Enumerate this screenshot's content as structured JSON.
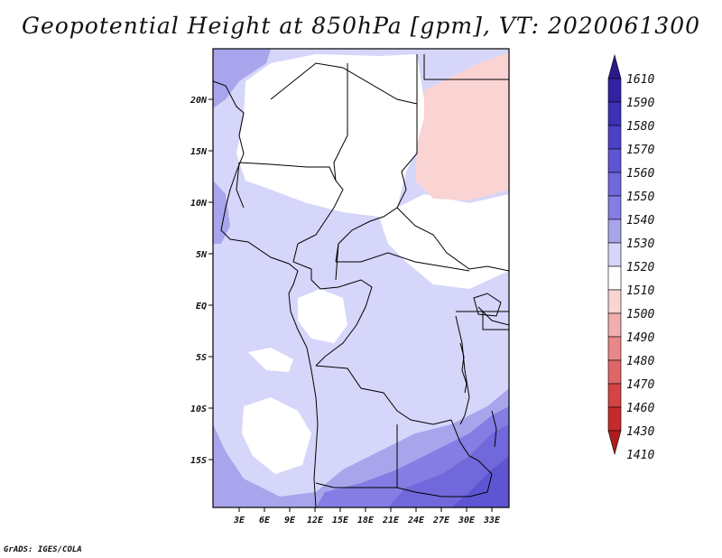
{
  "title": "Geopotential Height at 850hPa [gpm], VT: 2020061300",
  "credit": "GrADS: IGES/COLA",
  "map": {
    "lon_labels": [
      "3E",
      "6E",
      "9E",
      "12E",
      "15E",
      "18E",
      "21E",
      "24E",
      "27E",
      "30E",
      "33E"
    ],
    "lat_labels": [
      "20N",
      "15N",
      "10N",
      "5N",
      "EQ",
      "5S",
      "10S",
      "15S"
    ]
  },
  "colorbar": {
    "levels": [
      1610,
      1590,
      1580,
      1570,
      1560,
      1550,
      1540,
      1530,
      1520,
      1510,
      1500,
      1490,
      1480,
      1470,
      1460,
      1430,
      1410
    ],
    "labels": [
      "1610",
      "1590",
      "1580",
      "1570",
      "1560",
      "1550",
      "1540",
      "1530",
      "1520",
      "1510",
      "1500",
      "1490",
      "1480",
      "1470",
      "1460",
      "1430",
      "1410"
    ],
    "colors": [
      "#2a1a8a",
      "#3223a2",
      "#3d31b8",
      "#4c42c8",
      "#5e55d2",
      "#7168dc",
      "#857de4",
      "#a9a5ec",
      "#d6d6fa",
      "#ffffff",
      "#fad3d3",
      "#f2aeae",
      "#e88888",
      "#de6666",
      "#d44444",
      "#c72a2a",
      "#b01c1c"
    ]
  }
}
